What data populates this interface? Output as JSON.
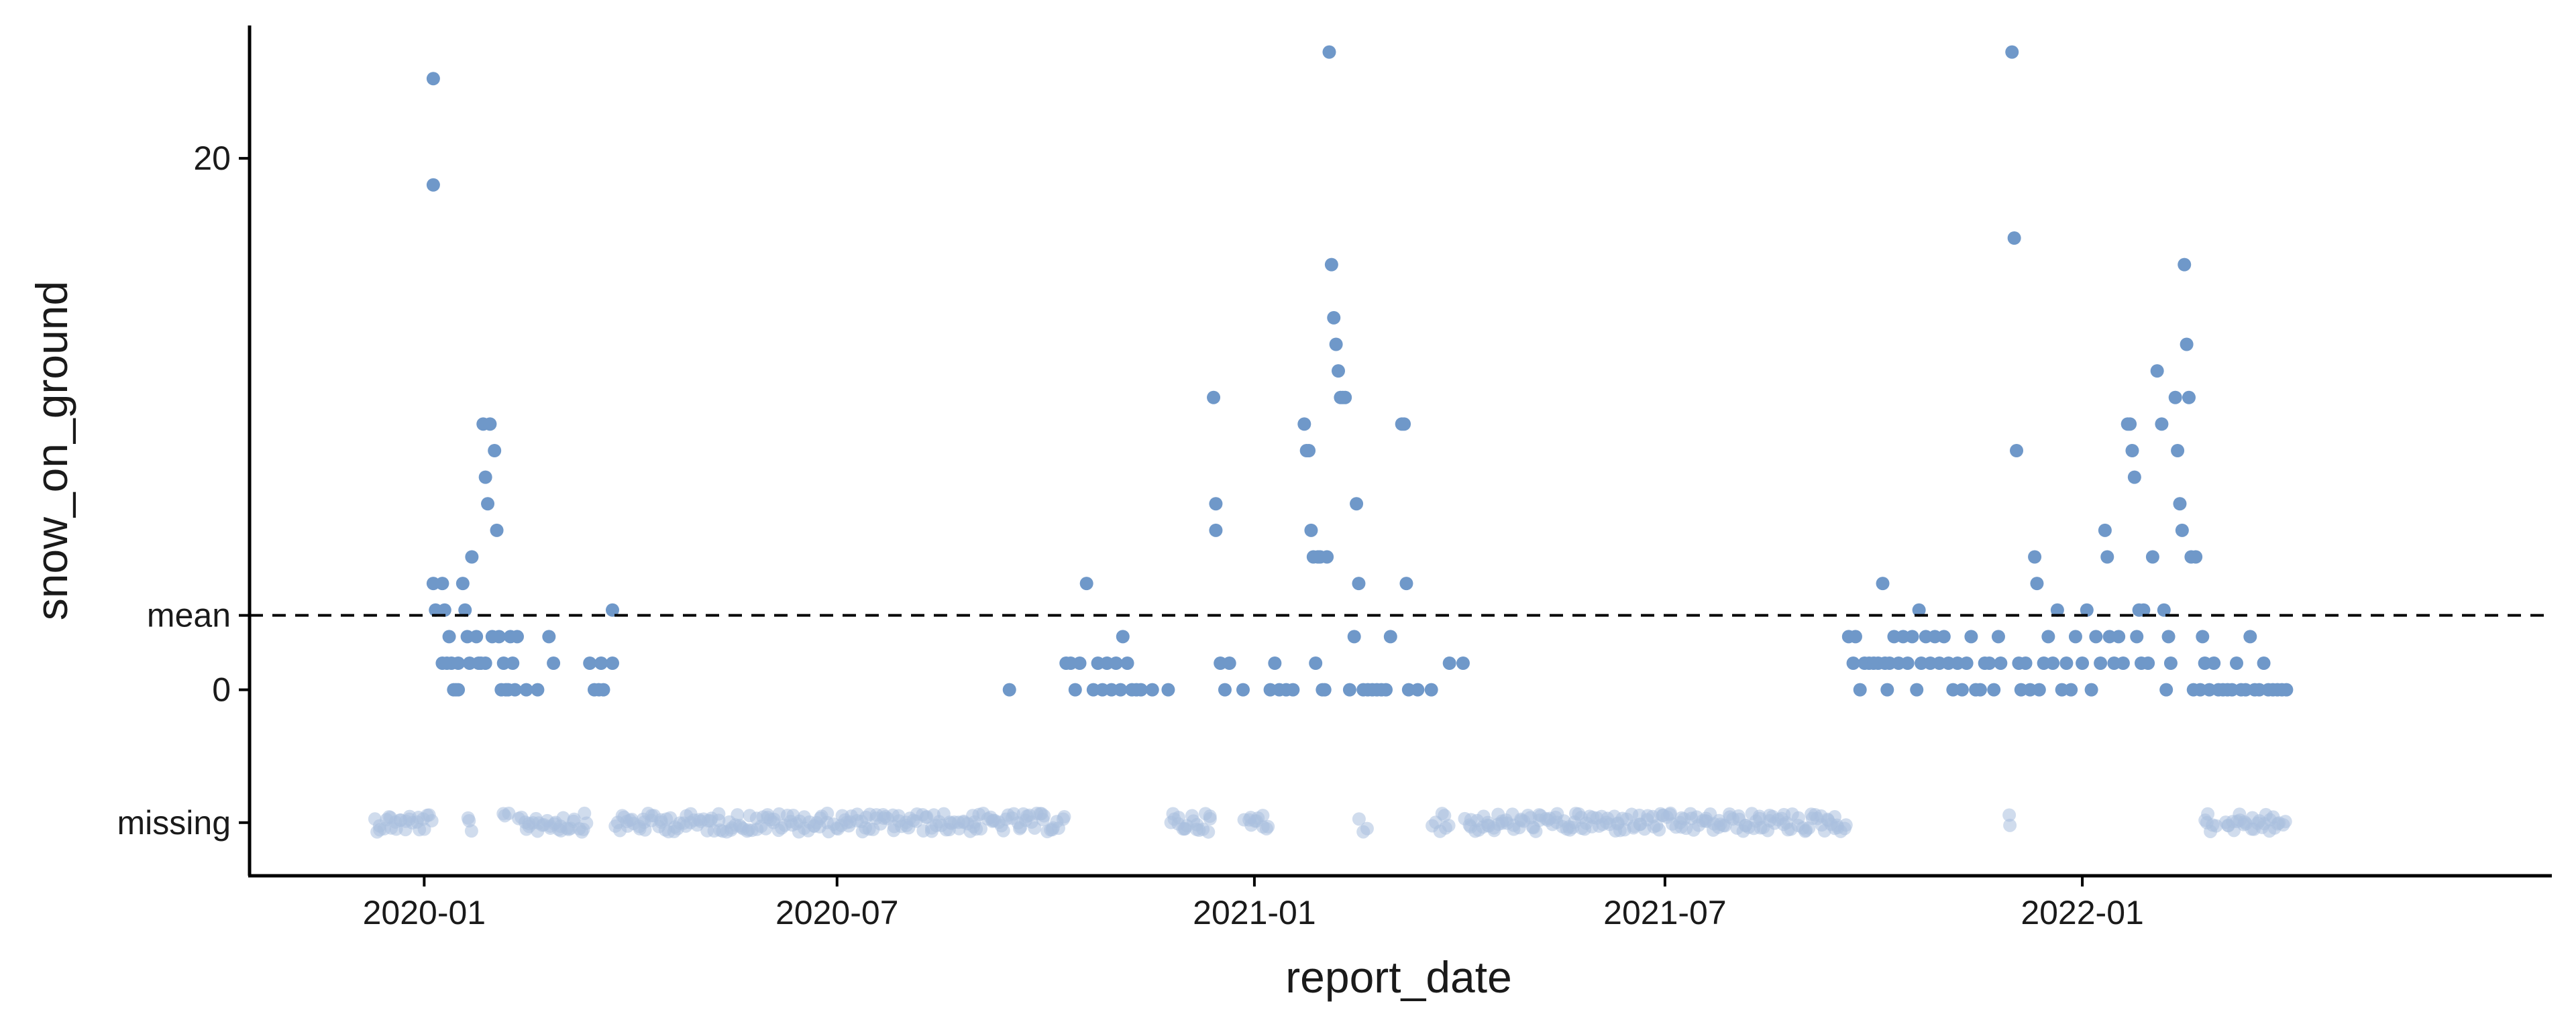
{
  "chart_data": {
    "type": "scatter",
    "title": "",
    "xlabel": "report_date",
    "ylabel": "snow_on_ground",
    "xlim": [
      "2019-10-16",
      "2022-07-27"
    ],
    "ylim": [
      -7,
      25
    ],
    "x_ticks": [
      "2020-01",
      "2020-07",
      "2021-01",
      "2021-07",
      "2022-01"
    ],
    "y_ticks": [
      {
        "label": "20",
        "value": 20
      },
      {
        "label": "mean",
        "value": 2.8
      },
      {
        "label": "0",
        "value": 0
      },
      {
        "label": "missing",
        "value": -5
      }
    ],
    "reference_line": {
      "label": "mean",
      "value": 2.8,
      "style": "dashed"
    },
    "grid": false,
    "point_color": "#6f98c9",
    "missing_point_color": "#a9c0df",
    "points": [
      {
        "date": "2020-01-05",
        "value": 23
      },
      {
        "date": "2020-01-05",
        "value": 19
      },
      {
        "date": "2020-01-05",
        "value": 4
      },
      {
        "date": "2020-01-06",
        "value": 3
      },
      {
        "date": "2020-01-09",
        "value": 4
      },
      {
        "date": "2020-01-09",
        "value": 1
      },
      {
        "date": "2020-01-10",
        "value": 3
      },
      {
        "date": "2020-01-11",
        "value": 1
      },
      {
        "date": "2020-01-12",
        "value": 2
      },
      {
        "date": "2020-01-13",
        "value": 1
      },
      {
        "date": "2020-01-14",
        "value": 0
      },
      {
        "date": "2020-01-15",
        "value": 0
      },
      {
        "date": "2020-01-16",
        "value": 0
      },
      {
        "date": "2020-01-16",
        "value": 1
      },
      {
        "date": "2020-01-18",
        "value": 4
      },
      {
        "date": "2020-01-19",
        "value": 3
      },
      {
        "date": "2020-01-20",
        "value": 2
      },
      {
        "date": "2020-01-21",
        "value": 1
      },
      {
        "date": "2020-01-22",
        "value": 5
      },
      {
        "date": "2020-01-24",
        "value": 2
      },
      {
        "date": "2020-01-25",
        "value": 1
      },
      {
        "date": "2020-01-26",
        "value": 1
      },
      {
        "date": "2020-01-27",
        "value": 10
      },
      {
        "date": "2020-01-28",
        "value": 8
      },
      {
        "date": "2020-01-28",
        "value": 1
      },
      {
        "date": "2020-01-29",
        "value": 7
      },
      {
        "date": "2020-01-30",
        "value": 10
      },
      {
        "date": "2020-01-31",
        "value": 2
      },
      {
        "date": "2020-02-01",
        "value": 9
      },
      {
        "date": "2020-02-02",
        "value": 6
      },
      {
        "date": "2020-02-03",
        "value": 2
      },
      {
        "date": "2020-02-04",
        "value": 0
      },
      {
        "date": "2020-02-05",
        "value": 1
      },
      {
        "date": "2020-02-06",
        "value": 0
      },
      {
        "date": "2020-02-07",
        "value": 0
      },
      {
        "date": "2020-02-08",
        "value": 2
      },
      {
        "date": "2020-02-09",
        "value": 1
      },
      {
        "date": "2020-02-10",
        "value": 0
      },
      {
        "date": "2020-02-11",
        "value": 2
      },
      {
        "date": "2020-02-15",
        "value": 0
      },
      {
        "date": "2020-02-20",
        "value": 0
      },
      {
        "date": "2020-02-25",
        "value": 2
      },
      {
        "date": "2020-02-27",
        "value": 1
      },
      {
        "date": "2020-03-14",
        "value": 1
      },
      {
        "date": "2020-03-16",
        "value": 0
      },
      {
        "date": "2020-03-18",
        "value": 0
      },
      {
        "date": "2020-03-19",
        "value": 1
      },
      {
        "date": "2020-03-20",
        "value": 0
      },
      {
        "date": "2020-03-24",
        "value": 1
      },
      {
        "date": "2020-03-24",
        "value": 3
      },
      {
        "date": "2020-09-15",
        "value": 0
      },
      {
        "date": "2020-10-10",
        "value": 1
      },
      {
        "date": "2020-10-12",
        "value": 1
      },
      {
        "date": "2020-10-14",
        "value": 0
      },
      {
        "date": "2020-10-16",
        "value": 1
      },
      {
        "date": "2020-10-19",
        "value": 4
      },
      {
        "date": "2020-10-22",
        "value": 0
      },
      {
        "date": "2020-10-24",
        "value": 1
      },
      {
        "date": "2020-10-26",
        "value": 0
      },
      {
        "date": "2020-10-28",
        "value": 1
      },
      {
        "date": "2020-10-30",
        "value": 0
      },
      {
        "date": "2020-11-01",
        "value": 1
      },
      {
        "date": "2020-11-03",
        "value": 0
      },
      {
        "date": "2020-11-04",
        "value": 2
      },
      {
        "date": "2020-11-06",
        "value": 1
      },
      {
        "date": "2020-11-08",
        "value": 0
      },
      {
        "date": "2020-11-10",
        "value": 0
      },
      {
        "date": "2020-11-12",
        "value": 0
      },
      {
        "date": "2020-11-17",
        "value": 0
      },
      {
        "date": "2020-11-24",
        "value": 0
      },
      {
        "date": "2020-12-14",
        "value": 11
      },
      {
        "date": "2020-12-15",
        "value": 7
      },
      {
        "date": "2020-12-15",
        "value": 6
      },
      {
        "date": "2020-12-17",
        "value": 1
      },
      {
        "date": "2020-12-19",
        "value": 0
      },
      {
        "date": "2020-12-21",
        "value": 1
      },
      {
        "date": "2020-12-27",
        "value": 0
      },
      {
        "date": "2021-01-08",
        "value": 0
      },
      {
        "date": "2021-01-10",
        "value": 1
      },
      {
        "date": "2021-01-12",
        "value": 0
      },
      {
        "date": "2021-01-15",
        "value": 0
      },
      {
        "date": "2021-01-18",
        "value": 0
      },
      {
        "date": "2021-01-23",
        "value": 10
      },
      {
        "date": "2021-01-24",
        "value": 9
      },
      {
        "date": "2021-01-25",
        "value": 9
      },
      {
        "date": "2021-01-26",
        "value": 6
      },
      {
        "date": "2021-01-27",
        "value": 5
      },
      {
        "date": "2021-01-28",
        "value": 1
      },
      {
        "date": "2021-01-29",
        "value": 5
      },
      {
        "date": "2021-01-30",
        "value": 5
      },
      {
        "date": "2021-01-31",
        "value": 0
      },
      {
        "date": "2021-02-01",
        "value": 0
      },
      {
        "date": "2021-02-02",
        "value": 5
      },
      {
        "date": "2021-02-03",
        "value": 24
      },
      {
        "date": "2021-02-04",
        "value": 16
      },
      {
        "date": "2021-02-05",
        "value": 14
      },
      {
        "date": "2021-02-06",
        "value": 13
      },
      {
        "date": "2021-02-07",
        "value": 12
      },
      {
        "date": "2021-02-08",
        "value": 11
      },
      {
        "date": "2021-02-09",
        "value": 11
      },
      {
        "date": "2021-02-10",
        "value": 11
      },
      {
        "date": "2021-02-12",
        "value": 0
      },
      {
        "date": "2021-02-14",
        "value": 2
      },
      {
        "date": "2021-02-15",
        "value": 7
      },
      {
        "date": "2021-02-16",
        "value": 4
      },
      {
        "date": "2021-02-18",
        "value": 0
      },
      {
        "date": "2021-02-20",
        "value": 0
      },
      {
        "date": "2021-02-22",
        "value": 0
      },
      {
        "date": "2021-02-24",
        "value": 0
      },
      {
        "date": "2021-02-26",
        "value": 0
      },
      {
        "date": "2021-02-28",
        "value": 0
      },
      {
        "date": "2021-03-02",
        "value": 2
      },
      {
        "date": "2021-03-07",
        "value": 10
      },
      {
        "date": "2021-03-08",
        "value": 10
      },
      {
        "date": "2021-03-09",
        "value": 4
      },
      {
        "date": "2021-03-10",
        "value": 0
      },
      {
        "date": "2021-03-14",
        "value": 0
      },
      {
        "date": "2021-03-20",
        "value": 0
      },
      {
        "date": "2021-03-28",
        "value": 1
      },
      {
        "date": "2021-04-03",
        "value": 1
      },
      {
        "date": "2021-09-20",
        "value": 2
      },
      {
        "date": "2021-09-22",
        "value": 1
      },
      {
        "date": "2021-09-23",
        "value": 2
      },
      {
        "date": "2021-09-25",
        "value": 0
      },
      {
        "date": "2021-09-27",
        "value": 1
      },
      {
        "date": "2021-09-29",
        "value": 1
      },
      {
        "date": "2021-10-01",
        "value": 1
      },
      {
        "date": "2021-10-03",
        "value": 1
      },
      {
        "date": "2021-10-05",
        "value": 4
      },
      {
        "date": "2021-10-06",
        "value": 1
      },
      {
        "date": "2021-10-07",
        "value": 0
      },
      {
        "date": "2021-10-08",
        "value": 1
      },
      {
        "date": "2021-10-10",
        "value": 2
      },
      {
        "date": "2021-10-12",
        "value": 1
      },
      {
        "date": "2021-10-14",
        "value": 2
      },
      {
        "date": "2021-10-16",
        "value": 1
      },
      {
        "date": "2021-10-18",
        "value": 2
      },
      {
        "date": "2021-10-20",
        "value": 0
      },
      {
        "date": "2021-10-21",
        "value": 3
      },
      {
        "date": "2021-10-22",
        "value": 1
      },
      {
        "date": "2021-10-24",
        "value": 2
      },
      {
        "date": "2021-10-26",
        "value": 1
      },
      {
        "date": "2021-10-28",
        "value": 2
      },
      {
        "date": "2021-10-30",
        "value": 1
      },
      {
        "date": "2021-11-01",
        "value": 2
      },
      {
        "date": "2021-11-03",
        "value": 1
      },
      {
        "date": "2021-11-05",
        "value": 0
      },
      {
        "date": "2021-11-07",
        "value": 1
      },
      {
        "date": "2021-11-09",
        "value": 0
      },
      {
        "date": "2021-11-11",
        "value": 1
      },
      {
        "date": "2021-11-13",
        "value": 2
      },
      {
        "date": "2021-11-15",
        "value": 0
      },
      {
        "date": "2021-11-17",
        "value": 0
      },
      {
        "date": "2021-11-19",
        "value": 1
      },
      {
        "date": "2021-11-21",
        "value": 1
      },
      {
        "date": "2021-11-23",
        "value": 0
      },
      {
        "date": "2021-11-25",
        "value": 2
      },
      {
        "date": "2021-11-26",
        "value": 1
      },
      {
        "date": "2021-12-01",
        "value": 24
      },
      {
        "date": "2021-12-02",
        "value": 17
      },
      {
        "date": "2021-12-03",
        "value": 9
      },
      {
        "date": "2021-12-04",
        "value": 1
      },
      {
        "date": "2021-12-05",
        "value": 0
      },
      {
        "date": "2021-12-07",
        "value": 1
      },
      {
        "date": "2021-12-09",
        "value": 0
      },
      {
        "date": "2021-12-11",
        "value": 5
      },
      {
        "date": "2021-12-12",
        "value": 4
      },
      {
        "date": "2021-12-13",
        "value": 0
      },
      {
        "date": "2021-12-15",
        "value": 1
      },
      {
        "date": "2021-12-17",
        "value": 2
      },
      {
        "date": "2021-12-19",
        "value": 1
      },
      {
        "date": "2021-12-21",
        "value": 3
      },
      {
        "date": "2021-12-23",
        "value": 0
      },
      {
        "date": "2021-12-25",
        "value": 1
      },
      {
        "date": "2021-12-27",
        "value": 0
      },
      {
        "date": "2021-12-29",
        "value": 2
      },
      {
        "date": "2022-01-01",
        "value": 1
      },
      {
        "date": "2022-01-03",
        "value": 3
      },
      {
        "date": "2022-01-05",
        "value": 0
      },
      {
        "date": "2022-01-07",
        "value": 2
      },
      {
        "date": "2022-01-09",
        "value": 1
      },
      {
        "date": "2022-01-11",
        "value": 6
      },
      {
        "date": "2022-01-12",
        "value": 5
      },
      {
        "date": "2022-01-13",
        "value": 2
      },
      {
        "date": "2022-01-15",
        "value": 1
      },
      {
        "date": "2022-01-17",
        "value": 2
      },
      {
        "date": "2022-01-19",
        "value": 1
      },
      {
        "date": "2022-01-21",
        "value": 10
      },
      {
        "date": "2022-01-22",
        "value": 10
      },
      {
        "date": "2022-01-23",
        "value": 9
      },
      {
        "date": "2022-01-24",
        "value": 8
      },
      {
        "date": "2022-01-25",
        "value": 2
      },
      {
        "date": "2022-01-26",
        "value": 3
      },
      {
        "date": "2022-01-27",
        "value": 1
      },
      {
        "date": "2022-01-28",
        "value": 3
      },
      {
        "date": "2022-01-30",
        "value": 1
      },
      {
        "date": "2022-02-01",
        "value": 5
      },
      {
        "date": "2022-02-03",
        "value": 12
      },
      {
        "date": "2022-02-05",
        "value": 10
      },
      {
        "date": "2022-02-06",
        "value": 3
      },
      {
        "date": "2022-02-07",
        "value": 0
      },
      {
        "date": "2022-02-08",
        "value": 2
      },
      {
        "date": "2022-02-09",
        "value": 1
      },
      {
        "date": "2022-02-11",
        "value": 11
      },
      {
        "date": "2022-02-12",
        "value": 9
      },
      {
        "date": "2022-02-13",
        "value": 7
      },
      {
        "date": "2022-02-14",
        "value": 6
      },
      {
        "date": "2022-02-15",
        "value": 16
      },
      {
        "date": "2022-02-16",
        "value": 13
      },
      {
        "date": "2022-02-17",
        "value": 11
      },
      {
        "date": "2022-02-18",
        "value": 5
      },
      {
        "date": "2022-02-19",
        "value": 0
      },
      {
        "date": "2022-02-20",
        "value": 5
      },
      {
        "date": "2022-02-22",
        "value": 0
      },
      {
        "date": "2022-02-23",
        "value": 2
      },
      {
        "date": "2022-02-24",
        "value": 1
      },
      {
        "date": "2022-02-26",
        "value": 0
      },
      {
        "date": "2022-02-28",
        "value": 1
      },
      {
        "date": "2022-03-02",
        "value": 0
      },
      {
        "date": "2022-03-04",
        "value": 0
      },
      {
        "date": "2022-03-06",
        "value": 0
      },
      {
        "date": "2022-03-08",
        "value": 0
      },
      {
        "date": "2022-03-10",
        "value": 1
      },
      {
        "date": "2022-03-12",
        "value": 0
      },
      {
        "date": "2022-03-14",
        "value": 0
      },
      {
        "date": "2022-03-16",
        "value": 2
      },
      {
        "date": "2022-03-18",
        "value": 0
      },
      {
        "date": "2022-03-20",
        "value": 0
      },
      {
        "date": "2022-03-22",
        "value": 1
      },
      {
        "date": "2022-03-24",
        "value": 0
      },
      {
        "date": "2022-03-26",
        "value": 0
      },
      {
        "date": "2022-03-28",
        "value": 0
      },
      {
        "date": "2022-03-30",
        "value": 0
      },
      {
        "date": "2022-04-01",
        "value": 0
      }
    ],
    "missing_date_ranges": [
      [
        "2019-12-10",
        "2020-01-04"
      ],
      [
        "2020-01-20",
        "2020-01-22"
      ],
      [
        "2020-02-05",
        "2020-02-07"
      ],
      [
        "2020-02-12",
        "2020-03-13"
      ],
      [
        "2020-03-25",
        "2020-09-14"
      ],
      [
        "2020-09-16",
        "2020-10-09"
      ],
      [
        "2020-11-25",
        "2020-12-13"
      ],
      [
        "2020-12-28",
        "2021-01-07"
      ],
      [
        "2021-02-17",
        "2021-02-19"
      ],
      [
        "2021-03-21",
        "2021-03-27"
      ],
      [
        "2021-04-04",
        "2021-09-19"
      ],
      [
        "2021-11-29",
        "2021-11-30"
      ],
      [
        "2022-02-24",
        "2022-03-01"
      ],
      [
        "2022-03-05",
        "2022-03-31"
      ]
    ]
  }
}
